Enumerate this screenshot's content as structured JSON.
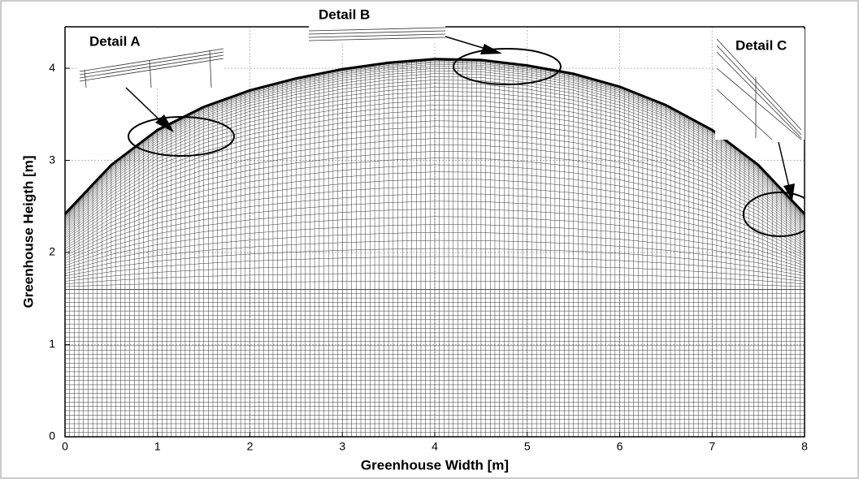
{
  "chart_data": {
    "type": "mesh",
    "xlabel": "Greenhouse Width [m]",
    "ylabel": "Greenhouse Heigth [m]",
    "annotations": [
      "Detail A",
      "Detail B",
      "Detail C"
    ],
    "roof": {
      "x": [
        0,
        0.5,
        1,
        1.5,
        2,
        2.5,
        3,
        3.5,
        4,
        4.5,
        5,
        5.5,
        6,
        6.5,
        7,
        7.5,
        8
      ],
      "y": [
        2.42,
        2.95,
        3.33,
        3.58,
        3.76,
        3.89,
        3.99,
        4.06,
        4.1,
        4.09,
        4.03,
        3.94,
        3.8,
        3.6,
        3.33,
        2.95,
        2.42
      ]
    },
    "mesh_split_height": 1.6,
    "xlim": [
      0,
      8
    ],
    "xticks": [
      0,
      1,
      2,
      3,
      4,
      5,
      6,
      7,
      8
    ],
    "ylim": [
      0,
      4.45
    ],
    "yticks": [
      0,
      1,
      2,
      3,
      4
    ],
    "grid": true
  }
}
